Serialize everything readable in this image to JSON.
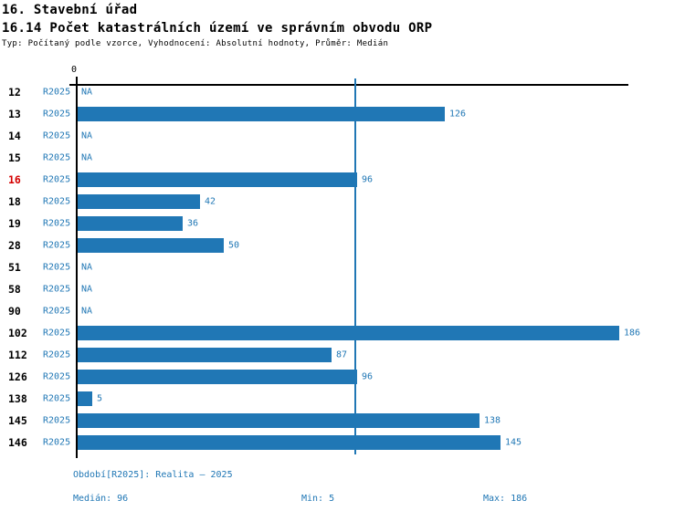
{
  "header": {
    "title_line1": "16. Stavební úřad",
    "title_line2": "16.14 Počet katastrálních území ve správním obvodu ORP",
    "subtitle": "Typ: Počítaný podle vzorce, Vyhodnocení: Absolutní hodnoty, Průměr: Medián"
  },
  "chart_data": {
    "type": "bar",
    "orientation": "horizontal",
    "title": "16.14 Počet katastrálních území ve správním obvodu ORP",
    "axis_zero_label": "0",
    "period_label": "R2025",
    "na_label": "NA",
    "categories": [
      "12",
      "13",
      "14",
      "15",
      "16",
      "18",
      "19",
      "28",
      "51",
      "58",
      "90",
      "102",
      "112",
      "126",
      "138",
      "145",
      "146"
    ],
    "values": [
      null,
      126,
      null,
      null,
      96,
      42,
      36,
      50,
      null,
      null,
      null,
      186,
      87,
      96,
      5,
      138,
      145
    ],
    "highlighted_category": "16",
    "median": 96,
    "min": 5,
    "max": 186,
    "xlim": [
      0,
      190
    ],
    "grid": false,
    "bar_color": "#2077B5",
    "highlight_color": "#D40000",
    "median_line_value": 96
  },
  "footer": {
    "period_line": "Období[R2025]: Realita – 2025",
    "median_label": "Medián: 96",
    "min_label": "Min: 5",
    "max_label": "Max: 186"
  }
}
